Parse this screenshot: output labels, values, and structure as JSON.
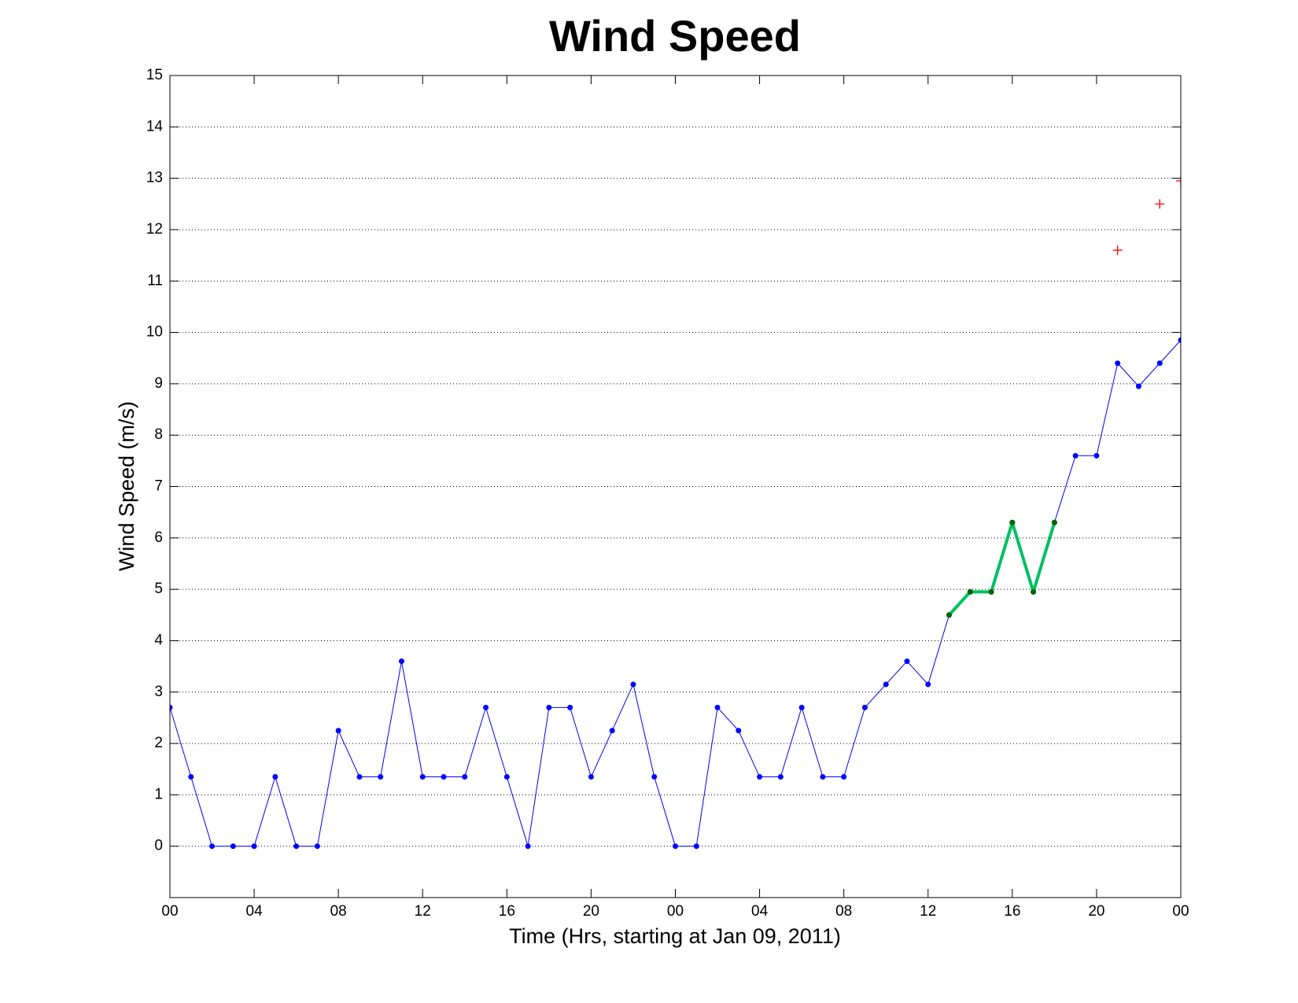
{
  "chart_data": {
    "type": "line",
    "title": "Wind Speed",
    "x_label": "Time (Hrs, starting at Jan 09, 2011)",
    "y_label": "Wind Speed (m/s)",
    "x": [
      0,
      1,
      2,
      3,
      4,
      5,
      6,
      7,
      8,
      9,
      10,
      11,
      12,
      13,
      14,
      15,
      16,
      17,
      18,
      19,
      20,
      21,
      22,
      23,
      24,
      25,
      26,
      27,
      28,
      29,
      30,
      31,
      32,
      33,
      34,
      35,
      36,
      37,
      38,
      39,
      40,
      41,
      42,
      43,
      44,
      45,
      46,
      47,
      48
    ],
    "xlim": [
      0,
      48
    ],
    "xticks": [
      {
        "value": 0,
        "label": "00"
      },
      {
        "value": 4,
        "label": "04"
      },
      {
        "value": 8,
        "label": "08"
      },
      {
        "value": 12,
        "label": "12"
      },
      {
        "value": 16,
        "label": "16"
      },
      {
        "value": 20,
        "label": "20"
      },
      {
        "value": 24,
        "label": "00"
      },
      {
        "value": 28,
        "label": "04"
      },
      {
        "value": 32,
        "label": "08"
      },
      {
        "value": 36,
        "label": "12"
      },
      {
        "value": 40,
        "label": "16"
      },
      {
        "value": 44,
        "label": "20"
      },
      {
        "value": 48,
        "label": "00"
      }
    ],
    "ylim": [
      -1,
      15
    ],
    "yticks": [
      0,
      1,
      2,
      3,
      4,
      5,
      6,
      7,
      8,
      9,
      10,
      11,
      12,
      13,
      14,
      15
    ],
    "grid": "y",
    "series": [
      {
        "color": "#0000ff",
        "line_width": 1,
        "marker": "dot",
        "marker_color": "#0000ff",
        "values": [
          2.7,
          1.35,
          0,
          0,
          0,
          1.35,
          0,
          0,
          2.25,
          1.35,
          1.35,
          3.6,
          1.35,
          1.35,
          1.35,
          2.7,
          1.35,
          0,
          2.7,
          2.7,
          1.35,
          2.25,
          3.15,
          1.35,
          0,
          0,
          2.7,
          2.25,
          1.35,
          1.35,
          2.7,
          1.35,
          1.35,
          2.7,
          3.15,
          3.6,
          3.15,
          4.5,
          4.95,
          4.95,
          6.3,
          4.95,
          6.3,
          7.6,
          7.6,
          9.4,
          8.95,
          9.4,
          9.85
        ]
      },
      {
        "color": "#00c060",
        "line_width": 4,
        "marker": "dot",
        "marker_color": "#006400",
        "values": [
          null,
          null,
          null,
          null,
          null,
          null,
          null,
          null,
          null,
          null,
          null,
          null,
          null,
          null,
          null,
          null,
          null,
          null,
          null,
          null,
          null,
          null,
          null,
          null,
          null,
          null,
          null,
          null,
          null,
          null,
          null,
          null,
          null,
          null,
          null,
          null,
          null,
          4.5,
          4.95,
          4.95,
          6.3,
          4.95,
          6.3,
          null,
          null,
          null,
          null,
          null,
          null
        ]
      },
      {
        "color": "#ff0000",
        "line_width": 0,
        "marker": "plus",
        "marker_color": "#ff0000",
        "values": [
          null,
          null,
          null,
          null,
          null,
          null,
          null,
          null,
          null,
          null,
          null,
          null,
          null,
          null,
          null,
          null,
          null,
          null,
          null,
          null,
          null,
          null,
          null,
          null,
          null,
          null,
          null,
          null,
          null,
          null,
          null,
          null,
          null,
          null,
          null,
          null,
          null,
          null,
          null,
          null,
          null,
          null,
          null,
          null,
          null,
          11.6,
          null,
          12.5,
          12.95
        ]
      }
    ]
  }
}
